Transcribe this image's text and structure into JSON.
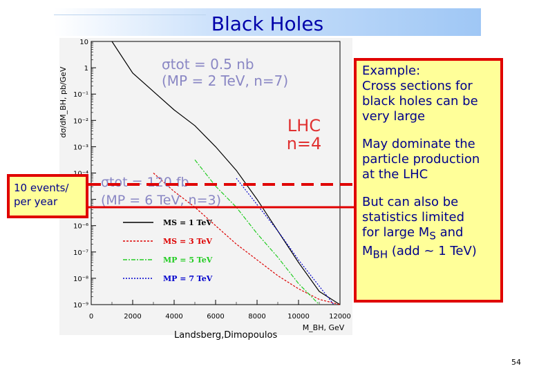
{
  "title": "Black Holes",
  "callout": {
    "p1_line1": "Example:",
    "p1_line2": "Cross sections for",
    "p1_line3": "black holes can be",
    "p1_line4": "very large",
    "p2_line1": "May dominate the",
    "p2_line2": "particle production",
    "p2_line3": "at the LHC",
    "p3_line1": "But can also be",
    "p3_line2": "statistics limited",
    "p3_line3_pre": "for large M",
    "p3_line3_sub": "S",
    "p3_line3_post": " and",
    "p3_line4_pre": "M",
    "p3_line4_sub": "BH",
    "p3_line4_post": " (add ~ 1 TeV)"
  },
  "events_box": {
    "line1": "10 events/",
    "line2": "per year"
  },
  "reference": "Landsberg,Dimopoulos",
  "page_number": "54",
  "chart_data": {
    "type": "line",
    "ylabel": "dσ/dM_BH, pb/GeV",
    "xlabel": "M_BH, GeV",
    "x_ticks": [
      "0",
      "2000",
      "4000",
      "6000",
      "8000",
      "10000",
      "12000"
    ],
    "y_tick_labels": [
      "10",
      "1",
      "10⁻¹",
      "10⁻²",
      "10⁻³",
      "10⁻⁴",
      "10⁻⁵",
      "10⁻⁶",
      "10⁻⁷",
      "10⁻⁸",
      "10⁻⁹"
    ],
    "xlim": [
      0,
      12000
    ],
    "ylim": [
      -9,
      1
    ],
    "y_scale": "log",
    "annotations": {
      "top_sigma": "σtot = 0.5 nb",
      "top_params": "(MP = 2 TeV, n=7)",
      "lhc_line1": "LHC",
      "lhc_line2": "n=4",
      "mid_sigma": "σtot = 120 fb",
      "mid_params": "(MP = 6 TeV, n=3)"
    },
    "ten_events_level_log10": -4.3,
    "series": [
      {
        "name": "MS = 1 TeV",
        "color": "#000000",
        "dash": "solid",
        "x": [
          1000,
          2000,
          3000,
          4000,
          5000,
          6000,
          7000,
          8000,
          9000,
          10000,
          11000,
          12000
        ],
        "y": [
          1.0,
          -0.2,
          -0.9,
          -1.6,
          -2.2,
          -3.0,
          -3.9,
          -5.0,
          -6.2,
          -7.4,
          -8.5,
          -9.0
        ]
      },
      {
        "name": "MS = 3 TeV",
        "color": "#dd0000",
        "dash": "3,2",
        "x": [
          3000,
          4000,
          5000,
          6000,
          7000,
          8000,
          9000,
          10000,
          11000,
          12000
        ],
        "y": [
          -4.0,
          -4.7,
          -5.3,
          -6.0,
          -6.7,
          -7.3,
          -7.9,
          -8.4,
          -8.8,
          -9.0
        ]
      },
      {
        "name": "MP = 5 TeV",
        "color": "#22cc22",
        "dash": "6,2,2,2",
        "x": [
          5000,
          6000,
          7000,
          8000,
          9000,
          10000,
          11000
        ],
        "y": [
          -3.5,
          -4.5,
          -5.3,
          -6.3,
          -7.2,
          -8.2,
          -9.0
        ]
      },
      {
        "name": "MP = 7 TeV",
        "color": "#0000cc",
        "dash": "2,2",
        "x": [
          7000,
          8000,
          9000,
          10000,
          11000,
          11700
        ],
        "y": [
          -4.2,
          -5.2,
          -6.2,
          -7.3,
          -8.3,
          -9.0
        ]
      }
    ]
  }
}
